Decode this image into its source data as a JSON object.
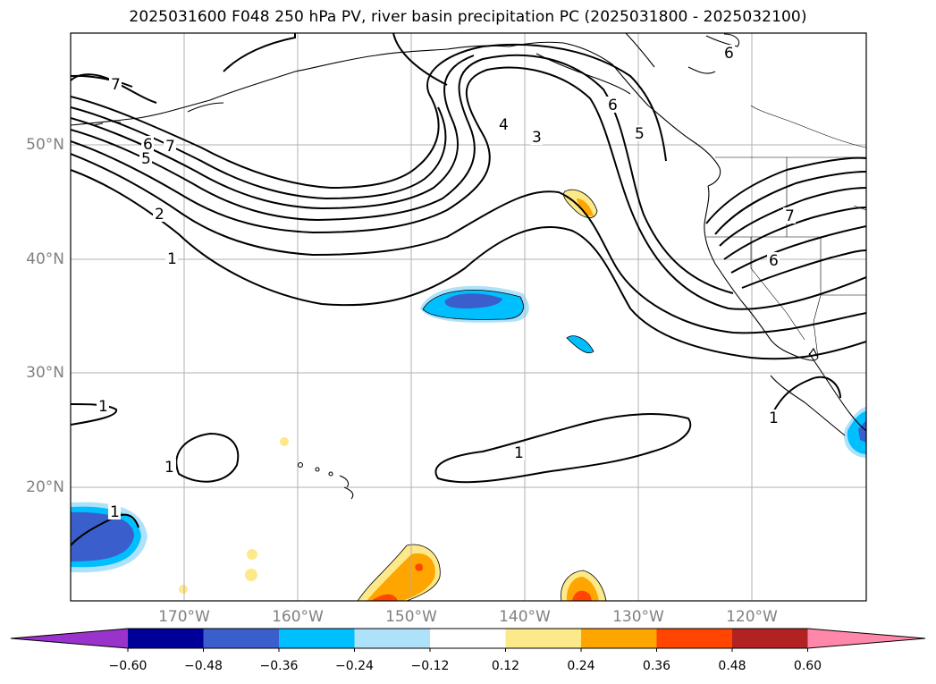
{
  "title": "2025031600 F048 250 hPa PV, river basin precipitation PC (2025031800 - 2025032100)",
  "map": {
    "lon_range": [
      -180,
      -110
    ],
    "lat_range": [
      10,
      60
    ],
    "lat_ticks": [
      {
        "value": 50,
        "label": "50°N"
      },
      {
        "value": 40,
        "label": "40°N"
      },
      {
        "value": 30,
        "label": "30°N"
      },
      {
        "value": 20,
        "label": "20°N"
      }
    ],
    "lon_ticks": [
      {
        "value": -170,
        "label": "170°W"
      },
      {
        "value": -160,
        "label": "160°W"
      },
      {
        "value": -150,
        "label": "150°W"
      },
      {
        "value": -140,
        "label": "140°W"
      },
      {
        "value": -130,
        "label": "130°W"
      },
      {
        "value": -120,
        "label": "120°W"
      }
    ],
    "contour_labels": [
      "1",
      "2",
      "3",
      "4",
      "5",
      "6",
      "7"
    ],
    "colors": {
      "coast": "#000000",
      "grid": "#b0b0b0",
      "contour": "#000000"
    }
  },
  "colorbar": {
    "ticks": [
      "−0.60",
      "−0.48",
      "−0.36",
      "−0.24",
      "−0.12",
      "0.12",
      "0.24",
      "0.36",
      "0.48",
      "0.60"
    ],
    "colors": [
      "#9933cc",
      "#000099",
      "#3a5fcd",
      "#00bfff",
      "#aee2fb",
      "#ffffff",
      "#fde88a",
      "#ffa500",
      "#ff4500",
      "#b22222",
      "#ff88aa"
    ]
  }
}
